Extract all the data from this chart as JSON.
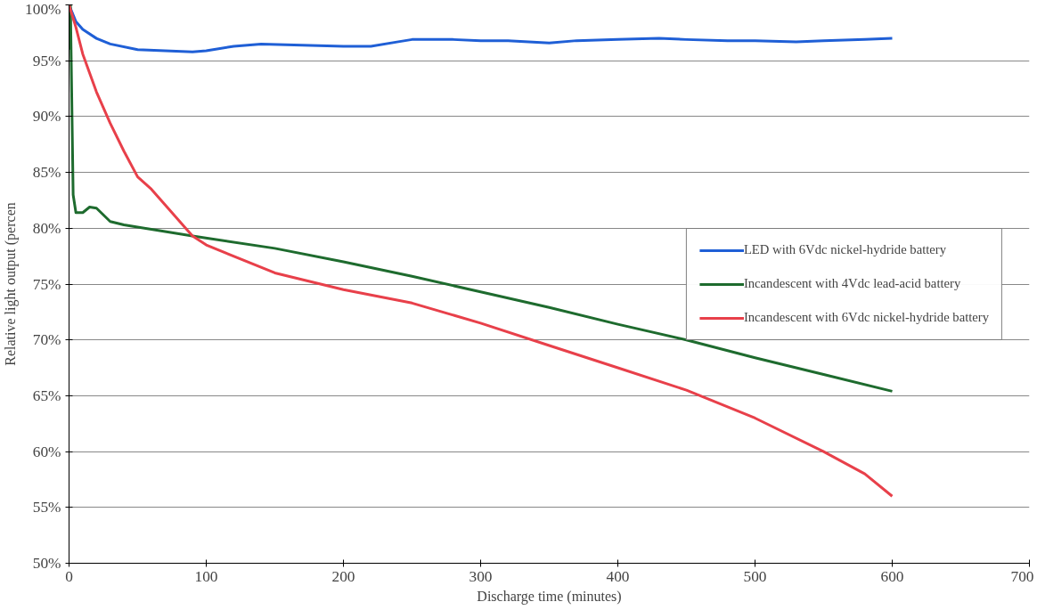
{
  "chart_data": {
    "type": "line",
    "xlabel": "Discharge time (minutes)",
    "ylabel": "Relative light output (percen",
    "xlim": [
      0,
      700
    ],
    "xticks": [
      0,
      100,
      200,
      300,
      400,
      500,
      600,
      700
    ],
    "ylim": [
      50,
      100
    ],
    "yticks": [
      {
        "value": 50,
        "label": "50%"
      },
      {
        "value": 55,
        "label": "55%"
      },
      {
        "value": 60,
        "label": "60%"
      },
      {
        "value": 65,
        "label": "65%"
      },
      {
        "value": 70,
        "label": "70%"
      },
      {
        "value": 75,
        "label": "75%"
      },
      {
        "value": 80,
        "label": "80%"
      },
      {
        "value": 85,
        "label": "85%"
      },
      {
        "value": 90,
        "label": "90%"
      },
      {
        "value": 95,
        "label": "95%"
      },
      {
        "value": 100,
        "label": "100%"
      }
    ],
    "grid": "y",
    "legend": "right",
    "line_style": "solid",
    "marker": "none",
    "series": [
      {
        "name": "LED with 6Vdc nickel-hydride battery",
        "color": "#1f5fd6",
        "x": [
          0,
          5,
          10,
          20,
          30,
          50,
          70,
          90,
          100,
          120,
          140,
          170,
          200,
          220,
          240,
          250,
          280,
          300,
          320,
          350,
          370,
          400,
          430,
          450,
          480,
          500,
          530,
          550,
          580,
          600
        ],
        "values": [
          100,
          98.5,
          97.8,
          97.0,
          96.5,
          96.0,
          95.9,
          95.8,
          95.9,
          96.3,
          96.5,
          96.4,
          96.3,
          96.3,
          96.7,
          96.9,
          96.9,
          96.8,
          96.8,
          96.6,
          96.8,
          96.9,
          97.0,
          96.9,
          96.8,
          96.8,
          96.7,
          96.8,
          96.9,
          97.0
        ]
      },
      {
        "name": "Incandescent with 4Vdc lead-acid battery",
        "color": "#1e6b2e",
        "x": [
          0,
          1,
          3,
          5,
          10,
          15,
          20,
          30,
          40,
          60,
          90,
          150,
          200,
          250,
          300,
          350,
          400,
          450,
          500,
          550,
          600
        ],
        "values": [
          96,
          100,
          83,
          81.4,
          81.4,
          81.9,
          81.8,
          80.6,
          80.3,
          79.9,
          79.3,
          78.2,
          77,
          75.7,
          74.3,
          72.9,
          71.4,
          70,
          68.4,
          66.9,
          65.4
        ]
      },
      {
        "name": "Incandescent with 6Vdc nickel-hydride battery",
        "color": "#e8404a",
        "x": [
          0,
          5,
          10,
          20,
          30,
          40,
          50,
          60,
          70,
          90,
          100,
          150,
          200,
          250,
          300,
          350,
          400,
          450,
          500,
          550,
          580,
          600
        ],
        "values": [
          100,
          98,
          95.6,
          92.2,
          89.4,
          86.9,
          84.6,
          83.5,
          82.1,
          79.3,
          78.5,
          76,
          74.5,
          73.3,
          71.5,
          69.5,
          67.5,
          65.5,
          63,
          60,
          58,
          56
        ]
      }
    ]
  }
}
